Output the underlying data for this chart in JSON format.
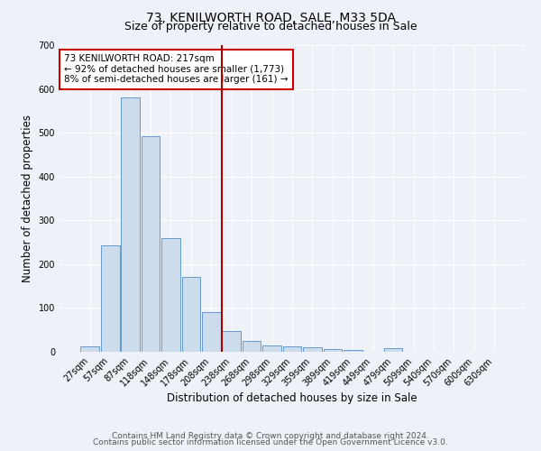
{
  "title": "73, KENILWORTH ROAD, SALE, M33 5DA",
  "subtitle": "Size of property relative to detached houses in Sale",
  "xlabel": "Distribution of detached houses by size in Sale",
  "ylabel": "Number of detached properties",
  "categories": [
    "27sqm",
    "57sqm",
    "87sqm",
    "118sqm",
    "148sqm",
    "178sqm",
    "208sqm",
    "238sqm",
    "268sqm",
    "298sqm",
    "329sqm",
    "359sqm",
    "389sqm",
    "419sqm",
    "449sqm",
    "479sqm",
    "509sqm",
    "540sqm",
    "570sqm",
    "600sqm",
    "630sqm"
  ],
  "values": [
    12,
    242,
    580,
    493,
    260,
    170,
    90,
    48,
    25,
    15,
    12,
    10,
    6,
    5,
    0,
    8,
    0,
    0,
    0,
    0,
    1
  ],
  "bar_color": "#ccdcec",
  "bar_edge_color": "#6699cc",
  "vline_color": "#aa0000",
  "vline_x_index": 6.5,
  "annotation_text": "73 KENILWORTH ROAD: 217sqm\n← 92% of detached houses are smaller (1,773)\n8% of semi-detached houses are larger (161) →",
  "annotation_box_facecolor": "#ffffff",
  "annotation_box_edgecolor": "#cc0000",
  "ylim": [
    0,
    700
  ],
  "yticks": [
    0,
    100,
    200,
    300,
    400,
    500,
    600,
    700
  ],
  "footer1": "Contains HM Land Registry data © Crown copyright and database right 2024.",
  "footer2": "Contains public sector information licensed under the Open Government Licence v3.0.",
  "bg_color": "#eef2f8",
  "grid_color": "#ffffff",
  "title_fontsize": 10,
  "subtitle_fontsize": 9,
  "xlabel_fontsize": 8.5,
  "ylabel_fontsize": 8.5,
  "tick_fontsize": 7,
  "annotation_fontsize": 7.5,
  "footer_fontsize": 6.5
}
